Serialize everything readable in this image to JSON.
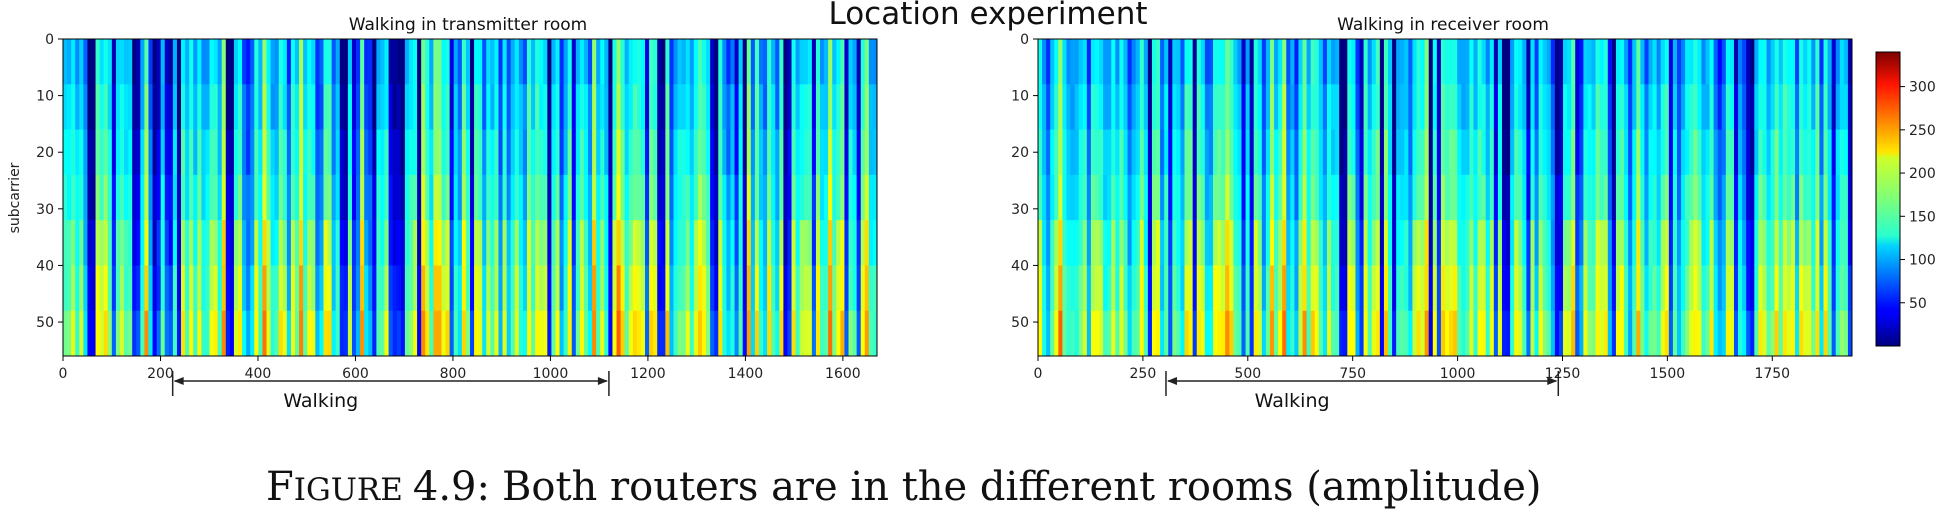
{
  "suptitle": "Location experiment",
  "caption": {
    "label_first": "F",
    "label_smallcaps": "IGURE",
    "number": "4.9:",
    "text": "Both routers are in the different rooms (amplitude)"
  },
  "colormap": "jet",
  "chart_data": [
    {
      "type": "heatmap",
      "title": "Walking in transmitter room",
      "xlabel": "",
      "ylabel": "subcarrier",
      "xlim": [
        0,
        1670
      ],
      "ylim": [
        56,
        0
      ],
      "x_ticks": [
        0,
        200,
        400,
        600,
        800,
        1000,
        1200,
        1400,
        1600
      ],
      "y_ticks": [
        0,
        10,
        20,
        30,
        40,
        50
      ],
      "annotation": {
        "text": "Walking",
        "x_start": 225,
        "x_end": 1120
      },
      "color_range": [
        0,
        340
      ]
    },
    {
      "type": "heatmap",
      "title": "Walking in receiver room",
      "xlabel": "",
      "ylabel": "",
      "xlim": [
        0,
        1940
      ],
      "ylim": [
        56,
        0
      ],
      "x_ticks": [
        0,
        250,
        500,
        750,
        1000,
        1250,
        1500,
        1750
      ],
      "y_ticks": [
        0,
        10,
        20,
        30,
        40,
        50
      ],
      "annotation": {
        "text": "Walking",
        "x_start": 305,
        "x_end": 1240
      },
      "color_range": [
        0,
        340
      ]
    }
  ],
  "colorbar": {
    "ticks": [
      50,
      100,
      150,
      200,
      250,
      300
    ],
    "range": [
      0,
      340
    ]
  }
}
